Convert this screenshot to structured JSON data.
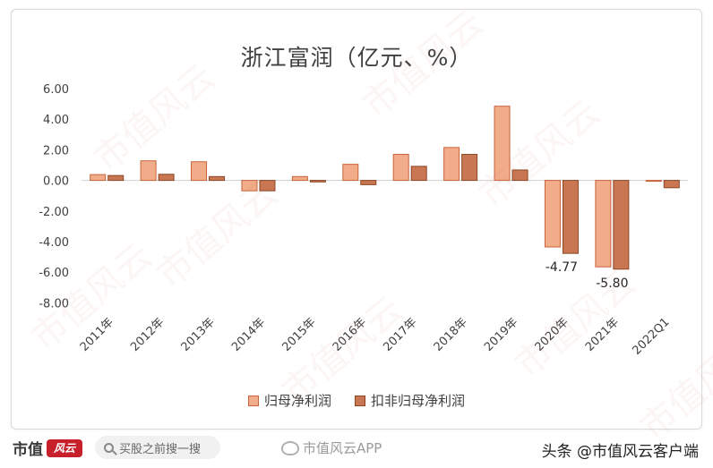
{
  "chart_data": {
    "type": "bar",
    "title": "浙江富润（亿元、%）",
    "categories": [
      "2011年",
      "2012年",
      "2013年",
      "2014年",
      "2015年",
      "2016年",
      "2017年",
      "2018年",
      "2019年",
      "2020年",
      "2021年",
      "2022Q1"
    ],
    "series": [
      {
        "name": "归母净利润",
        "values": [
          0.38,
          1.28,
          1.22,
          -0.68,
          0.25,
          1.05,
          1.7,
          2.15,
          4.85,
          -4.35,
          -5.65,
          -0.05
        ],
        "color": "#f1ac8a",
        "stroke": "#c8643a"
      },
      {
        "name": "扣非归母净利润",
        "values": [
          0.32,
          0.4,
          0.25,
          -0.68,
          -0.1,
          -0.28,
          0.92,
          1.7,
          0.68,
          -4.77,
          -5.8,
          -0.48
        ],
        "color": "#c87752",
        "stroke": "#8c4626"
      }
    ],
    "ylim": [
      -8,
      6
    ],
    "yticks": [
      "6.00",
      "4.00",
      "2.00",
      "0.00",
      "-2.00",
      "-4.00",
      "-6.00",
      "-8.00"
    ],
    "ytick_values": [
      6,
      4,
      2,
      0,
      -2,
      -4,
      -6,
      -8
    ],
    "data_labels": [
      {
        "series": 1,
        "category": 9,
        "text": "-4.77"
      },
      {
        "series": 1,
        "category": 10,
        "text": "-5.80"
      }
    ],
    "grid": true,
    "legend": "bottom"
  },
  "footer": {
    "brand_name": "市值",
    "brand_logo_text": "风云",
    "search_placeholder": "买股之前搜一搜",
    "weibo_text": "市值风云APP",
    "source_text": "头条 @市值风云客户端"
  },
  "watermark_text": "市值风云"
}
